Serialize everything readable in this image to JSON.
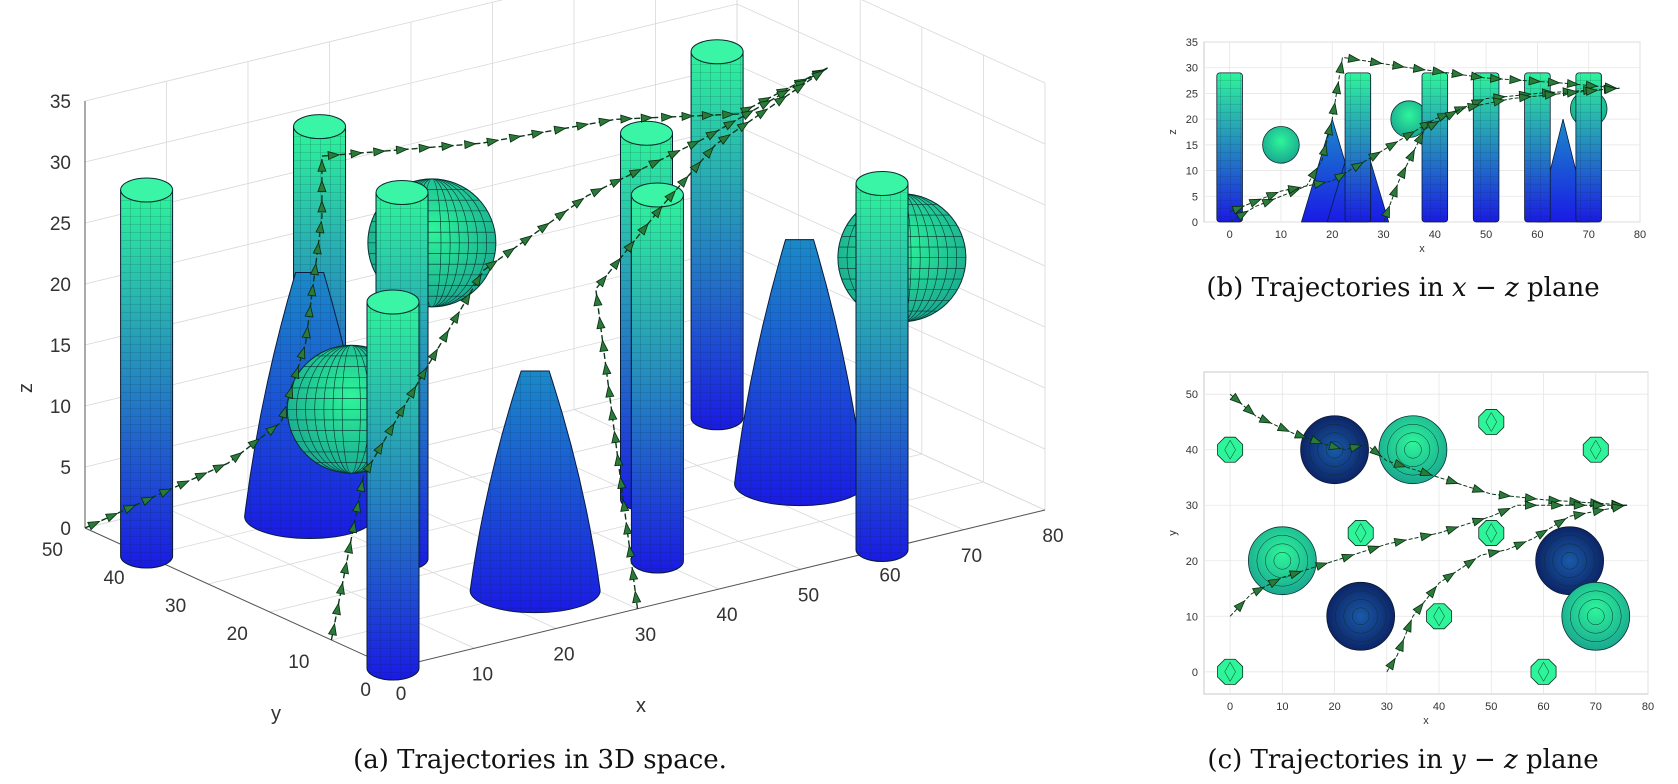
{
  "colors": {
    "obstacle_top": "#2ef59a",
    "obstacle_bottom": "#1a1ae6",
    "trajectory": "#0a3a1a",
    "marker": "#2a7a3a"
  },
  "chart_data": [
    {
      "id": "a",
      "type": "3d-surface",
      "caption": "(a) Trajectories in 3D space.",
      "xlabel": "x",
      "ylabel": "y",
      "zlabel": "z",
      "xlim": [
        0,
        80
      ],
      "ylim": [
        0,
        50
      ],
      "zlim": [
        0,
        35
      ],
      "x_ticks": [
        "0",
        "10",
        "20",
        "30",
        "40",
        "50",
        "60",
        "70",
        "80"
      ],
      "y_ticks": [
        "0",
        "10",
        "20",
        "30",
        "40",
        "50"
      ],
      "z_ticks": [
        "0",
        "5",
        "10",
        "15",
        "20",
        "25",
        "30",
        "35"
      ],
      "grid": true,
      "cylinders": [
        {
          "x": 0,
          "y": 40,
          "h": 30
        },
        {
          "x": 0,
          "y": 0,
          "h": 30
        },
        {
          "x": 25,
          "y": 45,
          "h": 30
        },
        {
          "x": 40,
          "y": 10,
          "h": 30
        },
        {
          "x": 50,
          "y": 25,
          "h": 30
        },
        {
          "x": 60,
          "y": 0,
          "h": 30
        },
        {
          "x": 70,
          "y": 40,
          "h": 30
        },
        {
          "x": 20,
          "y": 25,
          "h": 30
        }
      ],
      "spheres": [
        {
          "x": 10,
          "y": 20,
          "z": 15,
          "r": 6.5
        },
        {
          "x": 35,
          "y": 40,
          "z": 20,
          "r": 6.5
        },
        {
          "x": 70,
          "y": 10,
          "z": 20,
          "r": 6.5
        }
      ],
      "cones": [
        {
          "x": 20,
          "y": 40,
          "h": 20,
          "r": 6.5
        },
        {
          "x": 25,
          "y": 10,
          "h": 18,
          "r": 6.5
        },
        {
          "x": 65,
          "y": 20,
          "h": 20,
          "r": 6.5
        }
      ],
      "trajectories": [
        {
          "points": [
            [
              0,
              50,
              0
            ],
            [
              5,
              45,
              3
            ],
            [
              10,
              40,
              6
            ],
            [
              15,
              38,
              9
            ],
            [
              18,
              38,
              15
            ],
            [
              20,
              38,
              25
            ],
            [
              20,
              38,
              30
            ],
            [
              35,
              32,
              30
            ],
            [
              50,
              30,
              30
            ],
            [
              65,
              30,
              28
            ],
            [
              76,
              30,
              30
            ]
          ]
        },
        {
          "points": [
            [
              0,
              10,
              0
            ],
            [
              10,
              18,
              10
            ],
            [
              30,
              25,
              22
            ],
            [
              45,
              28,
              25
            ],
            [
              60,
              29,
              27
            ],
            [
              76,
              30,
              30
            ]
          ]
        },
        {
          "points": [
            [
              30,
              0,
              0
            ],
            [
              35,
              10,
              10
            ],
            [
              40,
              20,
              20
            ],
            [
              50,
              22,
              25
            ],
            [
              60,
              27,
              27
            ],
            [
              76,
              30,
              30
            ]
          ]
        }
      ]
    },
    {
      "id": "b",
      "type": "2d-projection",
      "caption_parts": [
        "(b) Trajectories in ",
        "x",
        " − ",
        "z",
        " plane"
      ],
      "xlabel": "x",
      "ylabel": "z",
      "xlim": [
        -5,
        80
      ],
      "ylim": [
        0,
        35
      ],
      "x_ticks": [
        "0",
        "10",
        "20",
        "30",
        "40",
        "50",
        "60",
        "70",
        "80"
      ],
      "y_ticks": [
        "0",
        "5",
        "10",
        "15",
        "20",
        "25",
        "30",
        "35"
      ],
      "grid": true,
      "cylinders": [
        {
          "x": 0,
          "w": 5,
          "h": 29
        },
        {
          "x": 25,
          "w": 5,
          "h": 29
        },
        {
          "x": 40,
          "w": 5,
          "h": 29
        },
        {
          "x": 50,
          "w": 5,
          "h": 29
        },
        {
          "x": 60,
          "w": 5,
          "h": 29
        },
        {
          "x": 70,
          "w": 5,
          "h": 29
        }
      ],
      "spheres": [
        {
          "x": 10,
          "z": 15,
          "r": 6.5
        },
        {
          "x": 35,
          "z": 20,
          "r": 6.5
        },
        {
          "x": 70,
          "z": 22,
          "r": 6.5
        }
      ],
      "cones": [
        {
          "x": 20,
          "h": 20,
          "r": 6
        },
        {
          "x": 25,
          "h": 20,
          "r": 6
        },
        {
          "x": 65,
          "h": 20,
          "r": 5
        }
      ],
      "trajectories": [
        {
          "points": [
            [
              0,
              0
            ],
            [
              5,
              3
            ],
            [
              10,
              5
            ],
            [
              15,
              7
            ],
            [
              18,
              12
            ],
            [
              20,
              20
            ],
            [
              22,
              32
            ],
            [
              35,
              30
            ],
            [
              50,
              28
            ],
            [
              65,
              27
            ],
            [
              76,
              26
            ]
          ]
        },
        {
          "points": [
            [
              0,
              2
            ],
            [
              10,
              6
            ],
            [
              20,
              8
            ],
            [
              30,
              14
            ],
            [
              40,
              20
            ],
            [
              50,
              24
            ],
            [
              60,
              25
            ],
            [
              76,
              26
            ]
          ]
        },
        {
          "points": [
            [
              30,
              0
            ],
            [
              33,
              8
            ],
            [
              38,
              18
            ],
            [
              45,
              22
            ],
            [
              55,
              24
            ],
            [
              65,
              25
            ],
            [
              76,
              26
            ]
          ]
        }
      ]
    },
    {
      "id": "c",
      "type": "2d-projection",
      "caption_parts": [
        "(c) Trajectories in ",
        "y",
        " − ",
        "z",
        " plane"
      ],
      "xlabel": "x",
      "ylabel": "y",
      "xlim": [
        -5,
        80
      ],
      "ylim": [
        -4,
        54
      ],
      "x_ticks": [
        "0",
        "10",
        "20",
        "30",
        "40",
        "50",
        "60",
        "70",
        "80"
      ],
      "y_ticks": [
        "0",
        "10",
        "20",
        "30",
        "40",
        "50"
      ],
      "grid": true,
      "small_cylinders": [
        {
          "x": 0,
          "y": 40
        },
        {
          "x": 0,
          "y": 0
        },
        {
          "x": 25,
          "y": 25
        },
        {
          "x": 40,
          "y": 10
        },
        {
          "x": 50,
          "y": 45
        },
        {
          "x": 50,
          "y": 25
        },
        {
          "x": 60,
          "y": 0
        },
        {
          "x": 70,
          "y": 40
        }
      ],
      "dark_circles": [
        {
          "x": 20,
          "y": 40,
          "r": 6.5
        },
        {
          "x": 25,
          "y": 10,
          "r": 6.5
        },
        {
          "x": 65,
          "y": 20,
          "r": 6.5
        }
      ],
      "light_circles": [
        {
          "x": 35,
          "y": 40,
          "r": 6.5
        },
        {
          "x": 10,
          "y": 20,
          "r": 6.5
        },
        {
          "x": 70,
          "y": 10,
          "r": 6.5
        }
      ],
      "trajectories": [
        {
          "points": [
            [
              0,
              50
            ],
            [
              5,
              46
            ],
            [
              12,
              43
            ],
            [
              18,
              41
            ],
            [
              22,
              40
            ],
            [
              26,
              41
            ],
            [
              30,
              38
            ],
            [
              40,
              35
            ],
            [
              50,
              32
            ],
            [
              60,
              31
            ],
            [
              76,
              30
            ]
          ]
        },
        {
          "points": [
            [
              0,
              10
            ],
            [
              4,
              14
            ],
            [
              10,
              17
            ],
            [
              20,
              20
            ],
            [
              30,
              23
            ],
            [
              40,
              25
            ],
            [
              50,
              28
            ],
            [
              55,
              30
            ],
            [
              65,
              30
            ],
            [
              76,
              30
            ]
          ]
        },
        {
          "points": [
            [
              30,
              0
            ],
            [
              32,
              3
            ],
            [
              35,
              10
            ],
            [
              40,
              16
            ],
            [
              48,
              21
            ],
            [
              53,
              22
            ],
            [
              58,
              24
            ],
            [
              65,
              28
            ],
            [
              76,
              30
            ]
          ]
        }
      ]
    }
  ]
}
